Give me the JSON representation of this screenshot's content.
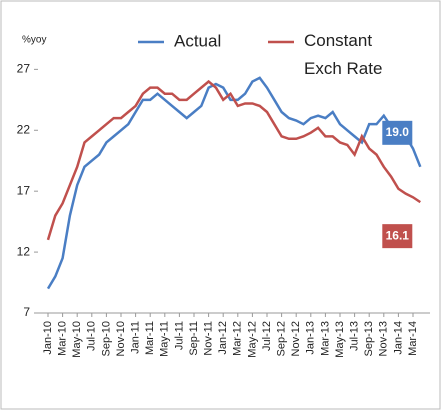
{
  "chart_data": {
    "type": "line",
    "y_label": "%yoy",
    "categories": [
      "Jan-10",
      null,
      "Mar-10",
      null,
      "May-10",
      null,
      "Jul-10",
      null,
      "Sep-10",
      null,
      "Nov-10",
      null,
      "Jan-11",
      null,
      "Mar-11",
      null,
      "May-11",
      null,
      "Jul-11",
      null,
      "Sep-11",
      null,
      "Nov-11",
      null,
      "Jan-12",
      null,
      "Mar-12",
      null,
      "May-12",
      null,
      "Jul-12",
      null,
      "Sep-12",
      null,
      "Nov-12",
      null,
      "Jan-13",
      null,
      "Mar-13",
      null,
      "May-13",
      null,
      "Jul-13",
      null,
      "Sep-13",
      null,
      "Nov-13",
      null,
      "Jan-14",
      null,
      "Mar-14",
      null
    ],
    "series": [
      {
        "name": "Actual",
        "color": "#4a7ec4",
        "values": [
          9,
          10,
          11.5,
          15,
          17.5,
          19,
          19.5,
          20,
          21,
          21.5,
          22,
          22.5,
          23.5,
          24.5,
          24.5,
          25,
          24.5,
          24,
          23.5,
          23,
          23.5,
          24,
          25.5,
          25.8,
          25.5,
          24.5,
          24.5,
          25,
          26,
          26.3,
          25.5,
          24.5,
          23.5,
          23,
          22.8,
          22.5,
          23,
          23.2,
          23,
          23.5,
          22.5,
          22,
          21.5,
          21,
          22.5,
          22.5,
          23.2,
          22.3,
          22.2,
          21.5,
          20.5,
          19.0
        ],
        "value_labels": [
          null,
          null,
          null,
          null,
          null,
          null,
          null,
          null,
          null,
          null,
          null,
          null,
          null,
          null,
          null,
          null,
          null,
          null,
          null,
          null,
          null,
          null,
          null,
          null,
          null,
          null,
          null,
          null,
          null,
          null,
          null,
          null,
          null,
          null,
          null,
          null,
          null,
          null,
          null,
          null,
          null,
          null,
          null,
          null,
          null,
          null,
          null,
          null,
          null,
          null,
          null,
          "19.0"
        ]
      },
      {
        "name": "Constant Exch Rate",
        "color": "#c0504d",
        "values": [
          13,
          15,
          16,
          17.5,
          19,
          21,
          21.5,
          22,
          22.5,
          23,
          23,
          23.5,
          24,
          25,
          25.5,
          25.5,
          25,
          25,
          24.5,
          24.5,
          25,
          25.5,
          26,
          25.5,
          24.5,
          25,
          24,
          24.2,
          24.2,
          24,
          23.5,
          22.5,
          21.5,
          21.3,
          21.3,
          21.5,
          21.8,
          22.2,
          21.5,
          21.5,
          21,
          20.8,
          20,
          21.5,
          20.5,
          20,
          19,
          18.2,
          17.2,
          16.8,
          16.5,
          16.1
        ],
        "value_labels": [
          null,
          null,
          null,
          null,
          null,
          null,
          null,
          null,
          null,
          null,
          null,
          null,
          null,
          null,
          null,
          null,
          null,
          null,
          null,
          null,
          null,
          null,
          null,
          null,
          null,
          null,
          null,
          null,
          null,
          null,
          null,
          null,
          null,
          null,
          null,
          null,
          null,
          null,
          null,
          null,
          null,
          null,
          null,
          null,
          null,
          null,
          null,
          null,
          null,
          null,
          null,
          "16.1"
        ]
      }
    ],
    "ylim": [
      7,
      29
    ],
    "yticks": [
      7,
      12,
      17,
      22,
      27
    ],
    "grid": false
  }
}
